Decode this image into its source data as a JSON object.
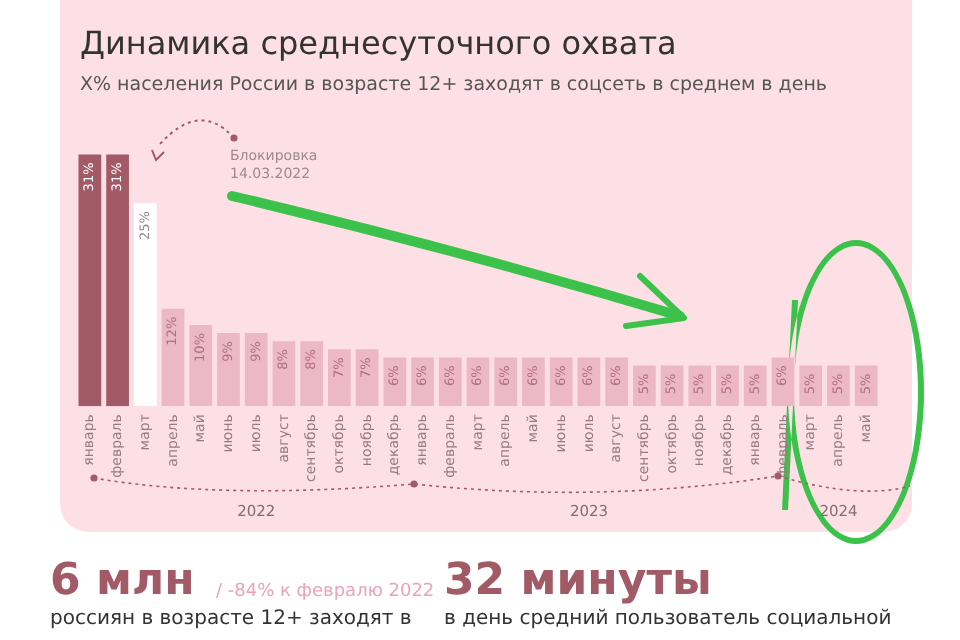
{
  "chart_data": {
    "type": "bar",
    "title": "Динамика среднесуточного охвата",
    "subtitle": "X% населения России в возрасте 12+ заходят в соцсеть в среднем в день",
    "categories": [
      "январь",
      "февраль",
      "март",
      "апрель",
      "май",
      "июнь",
      "июль",
      "август",
      "сентябрь",
      "октябрь",
      "ноябрь",
      "декабрь",
      "январь",
      "февраль",
      "март",
      "апрель",
      "май",
      "июнь",
      "июль",
      "август",
      "сентябрь",
      "октябрь",
      "ноябрь",
      "декабрь",
      "январь",
      "февраль",
      "март",
      "апрель",
      "май"
    ],
    "values": [
      31,
      31,
      25,
      12,
      10,
      9,
      9,
      8,
      8,
      7,
      7,
      6,
      6,
      6,
      6,
      6,
      6,
      6,
      6,
      6,
      5,
      5,
      5,
      5,
      5,
      6,
      5,
      5,
      5
    ],
    "value_labels": [
      "31%",
      "31%",
      "25%",
      "12%",
      "10%",
      "9%",
      "9%",
      "8%",
      "8%",
      "7%",
      "7%",
      "6%",
      "6%",
      "6%",
      "6%",
      "6%",
      "6%",
      "6%",
      "6%",
      "6%",
      "5%",
      "5%",
      "5%",
      "5%",
      "5%",
      "6%",
      "5%",
      "5%",
      "5%"
    ],
    "colors": [
      "#a35a67",
      "#a35a67",
      "#ffffff",
      "#ecb8c6",
      "#ecb8c6",
      "#ecb8c6",
      "#ecb8c6",
      "#ecb8c6",
      "#ecb8c6",
      "#ecb8c6",
      "#ecb8c6",
      "#ecb8c6",
      "#ecb8c6",
      "#ecb8c6",
      "#ecb8c6",
      "#ecb8c6",
      "#ecb8c6",
      "#ecb8c6",
      "#ecb8c6",
      "#ecb8c6",
      "#ecb8c6",
      "#ecb8c6",
      "#ecb8c6",
      "#ecb8c6",
      "#ecb8c6",
      "#ecb8c6",
      "#ecb8c6",
      "#ecb8c6",
      "#ecb8c6"
    ],
    "annotations": [
      "Блокировка 14.03.2022",
      "2022",
      "2023",
      "2024",
      "6 млн",
      "/ -84% к февралю 2022",
      "россиян в возрасте 12+ заходят в",
      "32 минуты",
      "в день средний пользователь социальной"
    ],
    "legend": false,
    "grid": false
  }
}
